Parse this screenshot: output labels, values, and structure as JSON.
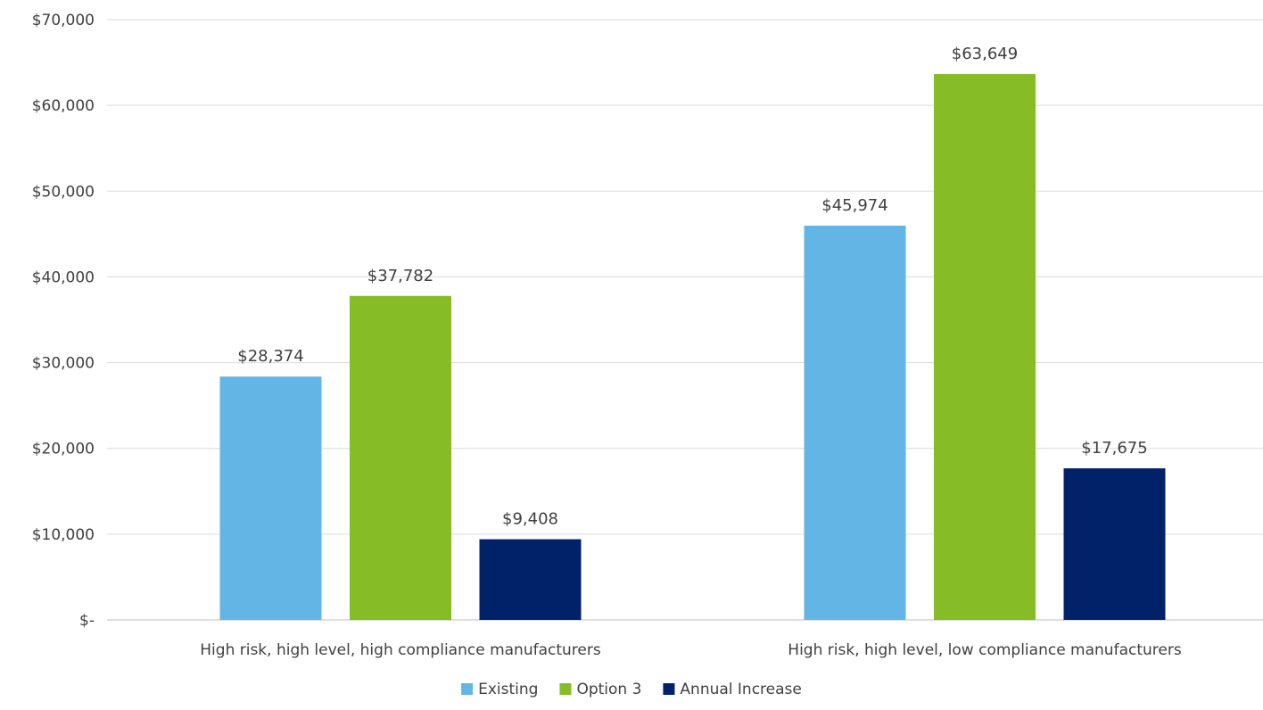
{
  "chart_data": {
    "type": "bar",
    "title": "",
    "xlabel": "",
    "ylabel": "",
    "categories": [
      "High risk, high level, high compliance manufacturers",
      "High risk, high level, low compliance manufacturers"
    ],
    "series": [
      {
        "name": "Existing",
        "color": "#63b5e5",
        "values": [
          28374,
          45974
        ],
        "labels": [
          "$28,374",
          "$45,974"
        ]
      },
      {
        "name": "Option 3",
        "color": "#86bc25",
        "values": [
          37782,
          63649
        ],
        "labels": [
          "$37,782",
          "$63,649"
        ]
      },
      {
        "name": "Annual Increase",
        "color": "#012169",
        "values": [
          9408,
          17675
        ],
        "labels": [
          "$9,408",
          "$17,675"
        ]
      }
    ],
    "ylim": [
      0,
      70000
    ],
    "yticks": [
      {
        "value": 0,
        "label": "$-"
      },
      {
        "value": 10000,
        "label": "$10,000"
      },
      {
        "value": 20000,
        "label": "$20,000"
      },
      {
        "value": 30000,
        "label": "$30,000"
      },
      {
        "value": 40000,
        "label": "$40,000"
      },
      {
        "value": 50000,
        "label": "$50,000"
      },
      {
        "value": 60000,
        "label": "$60,000"
      },
      {
        "value": 70000,
        "label": "$70,000"
      }
    ],
    "grid": true,
    "legend_position": "bottom-center"
  }
}
